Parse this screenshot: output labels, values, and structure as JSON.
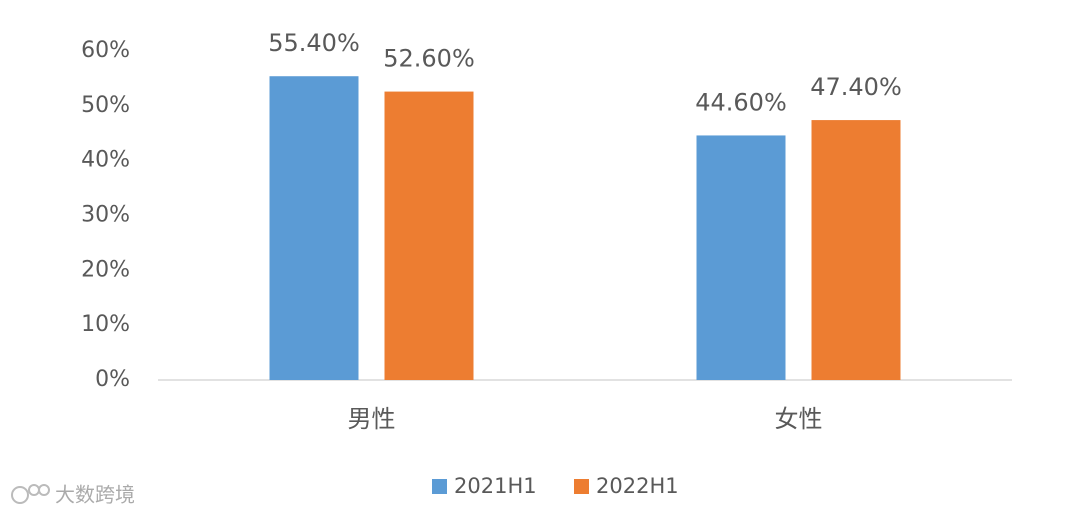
{
  "chart_data": {
    "type": "bar",
    "categories": [
      "男性",
      "女性"
    ],
    "series": [
      {
        "name": "2021H1",
        "color": "#5b9bd5",
        "values": [
          55.4,
          44.6
        ],
        "value_labels": [
          "55.40%",
          "44.60%"
        ]
      },
      {
        "name": "2022H1",
        "color": "#ed7d31",
        "values": [
          52.6,
          47.4
        ],
        "value_labels": [
          "52.60%",
          "47.40%"
        ]
      }
    ],
    "ylim": [
      0,
      60
    ],
    "yticks": [
      {
        "value": 0,
        "label": "0%"
      },
      {
        "value": 10,
        "label": "10%"
      },
      {
        "value": 20,
        "label": "20%"
      },
      {
        "value": 30,
        "label": "30%"
      },
      {
        "value": 40,
        "label": "40%"
      },
      {
        "value": 50,
        "label": "50%"
      },
      {
        "value": 60,
        "label": "60%"
      }
    ],
    "grid": false,
    "legend": "bottom"
  },
  "watermark": "大数跨境"
}
